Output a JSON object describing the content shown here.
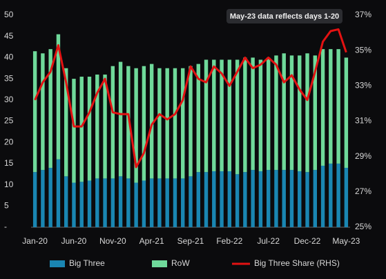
{
  "chart_data": {
    "type": "bar",
    "stacked": true,
    "annotation": "May-23 data reflects days 1-20",
    "categories": [
      "Jan-20",
      null,
      null,
      null,
      null,
      "Jun-20",
      null,
      null,
      null,
      null,
      "Nov-20",
      null,
      null,
      null,
      null,
      "Apr-21",
      null,
      null,
      null,
      null,
      "Sep-21",
      null,
      null,
      null,
      null,
      "Feb-22",
      null,
      null,
      null,
      null,
      "Jul-22",
      null,
      null,
      null,
      null,
      "Dec-22",
      null,
      null,
      null,
      null,
      "May-23"
    ],
    "series": [
      {
        "name": "Big Three",
        "color": "#1a86b2",
        "values": [
          13,
          13.5,
          14,
          16,
          12,
          10.5,
          10.7,
          11,
          11.5,
          11.5,
          11.5,
          12,
          11.5,
          10.5,
          11,
          11.5,
          11.5,
          11.5,
          11.5,
          11.5,
          12,
          13,
          13,
          13.2,
          13.2,
          13.2,
          12.5,
          13,
          13.5,
          13.2,
          13.5,
          13.5,
          13.5,
          13.5,
          13.2,
          13,
          13.5,
          14.5,
          15,
          15,
          14
        ]
      },
      {
        "name": "RoW",
        "color": "#6fd99a",
        "values": [
          28.5,
          27.5,
          28,
          29.5,
          25.5,
          24.5,
          24.8,
          24.5,
          24.5,
          24.5,
          26.5,
          27,
          26.5,
          27,
          27,
          27,
          26,
          26,
          26,
          26,
          26,
          25.5,
          26.5,
          26.3,
          26.3,
          26.3,
          27,
          27,
          26.5,
          26.3,
          26.5,
          27,
          27.5,
          27,
          27.3,
          28,
          27,
          27.5,
          27,
          27,
          26
        ]
      },
      {
        "name": "Big Three Share (RHS)",
        "color": "#e31212",
        "type": "line",
        "axis": "y2",
        "values": [
          32.2,
          33.2,
          33.8,
          35.3,
          33.2,
          30.7,
          30.7,
          31.5,
          32.6,
          33.4,
          31.5,
          31.4,
          31.4,
          28.4,
          29.2,
          30.8,
          31.4,
          31.1,
          31.4,
          32.2,
          34.1,
          33.4,
          33.2,
          34.1,
          33.7,
          33,
          33.8,
          34.6,
          34,
          34.2,
          34.6,
          34.2,
          33.2,
          33.6,
          32.8,
          32.2,
          33.8,
          35.5,
          36.1,
          36.2,
          34.9
        ]
      }
    ],
    "ylim": [
      0,
      50
    ],
    "yticks": [
      {
        "value": 0,
        "label": "-"
      },
      5,
      10,
      15,
      20,
      25,
      30,
      35,
      40,
      45,
      50
    ],
    "y2lim": [
      25,
      37
    ],
    "y2ticks": [
      {
        "value": 25,
        "label": "25%"
      },
      {
        "value": 27,
        "label": "27%"
      },
      {
        "value": 29,
        "label": "29%"
      },
      {
        "value": 31,
        "label": "31%"
      },
      {
        "value": 33,
        "label": "33%"
      },
      {
        "value": 35,
        "label": "35%"
      },
      {
        "value": 37,
        "label": "37%"
      }
    ],
    "grid": false
  }
}
